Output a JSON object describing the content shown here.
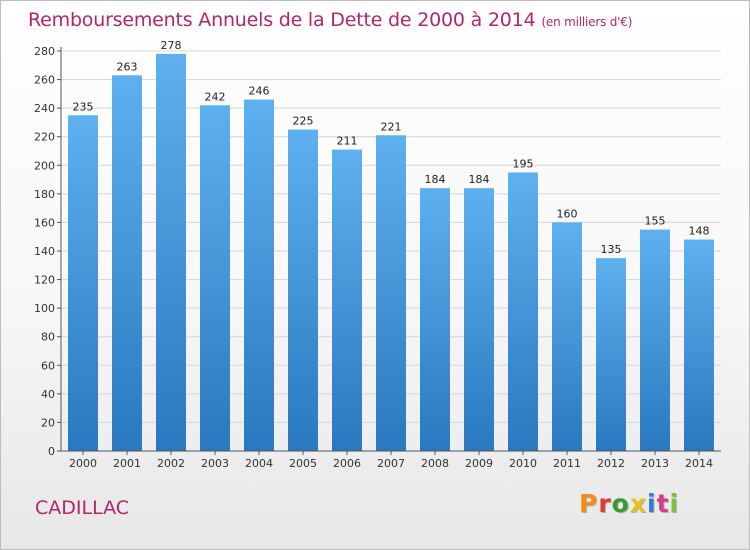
{
  "header": {
    "title": "Remboursements Annuels de la Dette de 2000 à 2014",
    "unit": "(en milliers d'€)"
  },
  "footer": {
    "town": "CADILLAC",
    "logo": "Proxiti",
    "logo_colors": [
      "#f28c1b",
      "#e03a2f",
      "#3a9a2f",
      "#e8c41b",
      "#2a7fc9",
      "#d43d8c",
      "#7cc242"
    ]
  },
  "chart_data": {
    "type": "bar",
    "categories": [
      "2000",
      "2001",
      "2002",
      "2003",
      "2004",
      "2005",
      "2006",
      "2007",
      "2008",
      "2009",
      "2010",
      "2011",
      "2012",
      "2013",
      "2014"
    ],
    "values": [
      235,
      263,
      278,
      242,
      246,
      225,
      211,
      221,
      184,
      184,
      195,
      160,
      135,
      155,
      148
    ],
    "title": "Remboursements Annuels de la Dette de 2000 à 2014",
    "xlabel": "",
    "ylabel": "",
    "ylim": [
      0,
      280
    ],
    "yticks": [
      0,
      20,
      40,
      60,
      80,
      100,
      120,
      140,
      160,
      180,
      200,
      220,
      240,
      260,
      280
    ],
    "grid": true,
    "bar_color_top": "#5fb0ef",
    "bar_color_bottom": "#2a78bf"
  }
}
